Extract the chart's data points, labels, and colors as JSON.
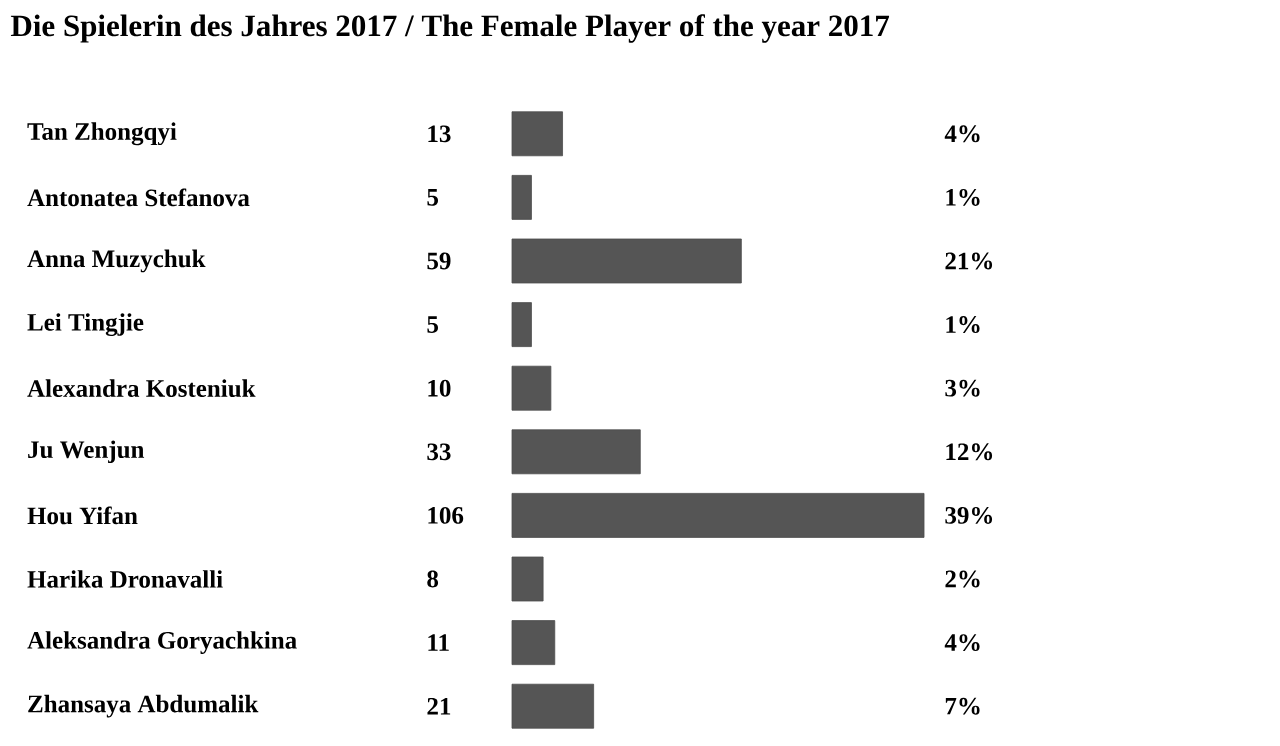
{
  "chart_data": {
    "type": "bar",
    "orientation": "horizontal",
    "title": "Die Spielerin des Jahres 2017 / The Female Player of the year 2017",
    "categories": [
      "Tan Zhongqyi",
      "Antonatea Stefanova",
      "Anna Muzychuk",
      "Lei Tingjie",
      "Alexandra Kosteniuk",
      "Ju Wenjun",
      "Hou Yifan",
      "Harika Dronavalli",
      "Aleksandra Goryachkina",
      "Zhansaya Abdumalik"
    ],
    "values": [
      13,
      5,
      59,
      5,
      10,
      33,
      106,
      8,
      11,
      21
    ],
    "color": "#555555",
    "data_labels": true,
    "annotations": [
      "4%",
      "1%",
      "21%",
      "1%",
      "3%",
      "12%",
      "39%",
      "2%",
      "4%",
      "7%"
    ]
  }
}
